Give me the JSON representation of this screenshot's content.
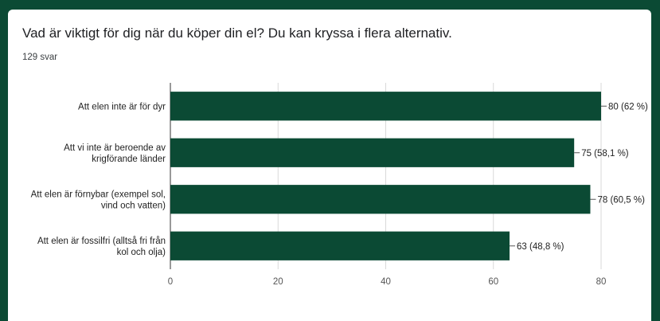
{
  "question": {
    "title": "Vad är viktigt för dig när du köper din el? Du kan kryssa i flera alternativ.",
    "responses": "129 svar"
  },
  "chart_data": {
    "type": "bar",
    "orientation": "horizontal",
    "categories": [
      [
        "Att elen inte är för dyr"
      ],
      [
        "Att vi inte är beroende av",
        "krigförande länder"
      ],
      [
        "Att elen är förnybar (exempel sol,",
        "vind och vatten)"
      ],
      [
        "Att elen är fossilfri (alltså fri från",
        "kol och olja)"
      ]
    ],
    "values": [
      80,
      75,
      78,
      63
    ],
    "value_labels": [
      "80 (62 %)",
      "75 (58,1 %)",
      "78 (60,5 %)",
      "63 (48,8 %)"
    ],
    "xlim": [
      0,
      80
    ],
    "xticks": [
      0,
      20,
      40,
      60,
      80
    ],
    "grid": true,
    "bar_color": "#0b4a34"
  }
}
